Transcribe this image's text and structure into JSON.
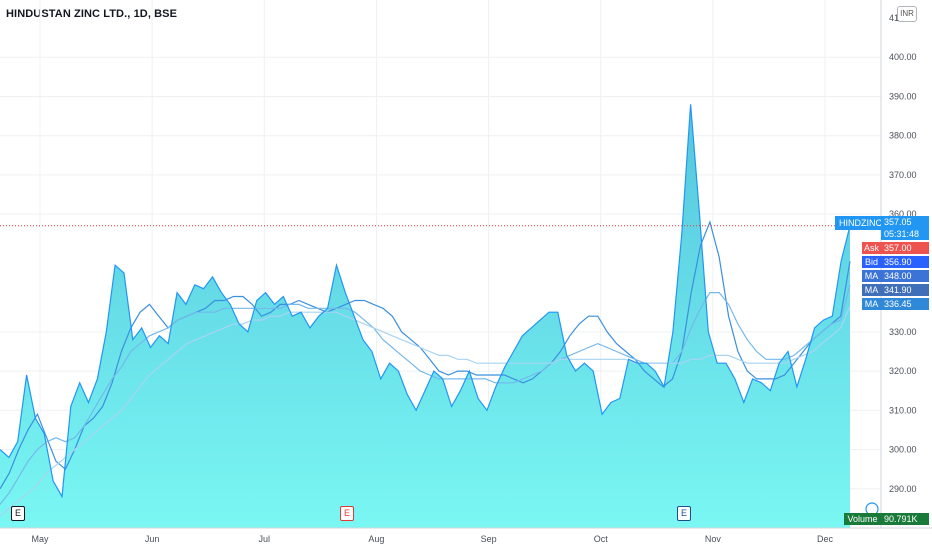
{
  "header": {
    "title": "HINDUSTAN ZINC LTD., 1D, BSE",
    "currency_button": "INR"
  },
  "price_axis": {
    "labels": [
      "400.00",
      "390.00",
      "380.00",
      "370.00",
      "360.00",
      "330.00",
      "320.00",
      "310.00",
      "300.00",
      "290.00"
    ],
    "partial_top": "41"
  },
  "time_axis": {
    "labels": [
      "May",
      "Jun",
      "Jul",
      "Aug",
      "Sep",
      "Oct",
      "Nov",
      "Dec"
    ]
  },
  "ticker": {
    "symbol": "HINDZINC",
    "price": "357.05",
    "countdown": "05:31:48"
  },
  "quotes": [
    {
      "tag": "Ask",
      "value": "357.00",
      "color": "#ef5350"
    },
    {
      "tag": "Bid",
      "value": "356.90",
      "color": "#2962ff"
    },
    {
      "tag": "MA",
      "value": "348.00",
      "color": "#3b73d6"
    },
    {
      "tag": "MA",
      "value": "341.90",
      "color": "#3f6fb8"
    },
    {
      "tag": "MA",
      "value": "336.45",
      "color": "#2f89d8"
    }
  ],
  "volume": {
    "label": "Volume",
    "value": "90.791K"
  },
  "earnings_markers": [
    {
      "letter": "E",
      "month_pos": "May",
      "color": "#131722"
    },
    {
      "letter": "E",
      "month_pos": "Aug",
      "color": "#e53935"
    },
    {
      "letter": "E",
      "month_pos": "Oct",
      "color": "#1e4f8c"
    }
  ],
  "colors": {
    "area_top": "#55c5dd",
    "area_bottom": "#7af7f3",
    "line": "#2196f3",
    "ma1": "#3b8fe0",
    "ma2": "#75b8ec",
    "ma3": "#a8d4f2",
    "grid": "#eef0f3",
    "last_price_line": "#e53935"
  },
  "chart_data": {
    "type": "area",
    "x_labels": [
      "May",
      "Jun",
      "Jul",
      "Aug",
      "Sep",
      "Oct",
      "Nov",
      "Dec"
    ],
    "ylim": [
      280,
      410
    ],
    "last_price": 357.05,
    "series": [
      {
        "values": [
          300,
          298,
          302,
          319,
          308,
          304,
          292,
          288,
          311,
          317,
          312,
          318,
          330,
          347,
          345,
          328,
          331,
          326,
          329,
          327,
          340,
          337,
          342,
          341,
          344,
          340,
          337,
          332,
          330,
          338,
          340,
          337,
          339,
          334,
          335,
          331,
          334,
          336,
          347,
          340,
          334,
          328,
          325,
          318,
          322,
          320,
          314,
          310,
          315,
          320,
          318,
          311,
          315,
          320,
          313,
          310,
          316,
          321,
          325,
          329,
          331,
          333,
          335,
          335,
          324,
          320,
          322,
          320,
          309,
          312,
          313,
          323,
          322,
          322,
          320,
          316,
          330,
          355,
          388,
          360,
          330,
          322,
          322,
          318,
          312,
          318,
          317,
          315,
          322,
          325,
          316,
          323,
          331,
          333,
          334,
          348,
          357
        ]
      },
      {
        "values": [
          290,
          294,
          300,
          305,
          309,
          303,
          297,
          295,
          300,
          306,
          308,
          311,
          317,
          325,
          331,
          335,
          337,
          334,
          331,
          333,
          334,
          335,
          336,
          338,
          338,
          339,
          339,
          337,
          334,
          335,
          337,
          337,
          338,
          337,
          336,
          335,
          336,
          337,
          338,
          338,
          337,
          336,
          334,
          330,
          328,
          326,
          323,
          320,
          319,
          320,
          320,
          319,
          319,
          319,
          319,
          318,
          317,
          318,
          320,
          322,
          325,
          329,
          332,
          334,
          334,
          330,
          327,
          325,
          323,
          320,
          318,
          316,
          318,
          325,
          340,
          352,
          358,
          349,
          334,
          325,
          320,
          318,
          318,
          318,
          319,
          322,
          325,
          328,
          330,
          332,
          334,
          348
        ]
      },
      {
        "values": [
          286,
          289,
          293,
          297,
          300,
          302,
          303,
          302,
          303,
          306,
          310,
          314,
          318,
          321,
          325,
          327,
          329,
          330,
          331,
          333,
          334,
          335,
          335,
          335,
          336,
          336,
          336,
          336,
          336,
          336,
          336,
          337,
          337,
          336,
          336,
          336,
          336,
          336,
          335,
          333,
          331,
          328,
          326,
          324,
          322,
          320,
          319,
          318,
          318,
          318,
          318,
          318,
          318,
          317,
          317,
          317,
          318,
          319,
          320,
          322,
          323,
          324,
          325,
          326,
          327,
          326,
          325,
          324,
          323,
          322,
          322,
          322,
          322,
          325,
          331,
          336,
          340,
          340,
          337,
          332,
          328,
          325,
          323,
          323,
          323,
          324,
          326,
          328,
          330,
          332,
          333,
          341.9
        ]
      },
      {
        "values": [
          283,
          285,
          287,
          289,
          291,
          294,
          296,
          298,
          300,
          302,
          304,
          306,
          308,
          310,
          313,
          316,
          319,
          321,
          323,
          325,
          327,
          328,
          329,
          330,
          331,
          332,
          332,
          333,
          333,
          334,
          334,
          335,
          335,
          335,
          335,
          335,
          335,
          334,
          333,
          332,
          331,
          330,
          329,
          328,
          327,
          326,
          325,
          324,
          324,
          323,
          323,
          322,
          322,
          322,
          322,
          322,
          322,
          322,
          322,
          322,
          323,
          323,
          323,
          323,
          323,
          323,
          323,
          323,
          322,
          322,
          322,
          322,
          322,
          322,
          323,
          323,
          324,
          324,
          324,
          323,
          322,
          322,
          322,
          322,
          322,
          323,
          324,
          325,
          327,
          329,
          331,
          336.45
        ]
      }
    ]
  }
}
